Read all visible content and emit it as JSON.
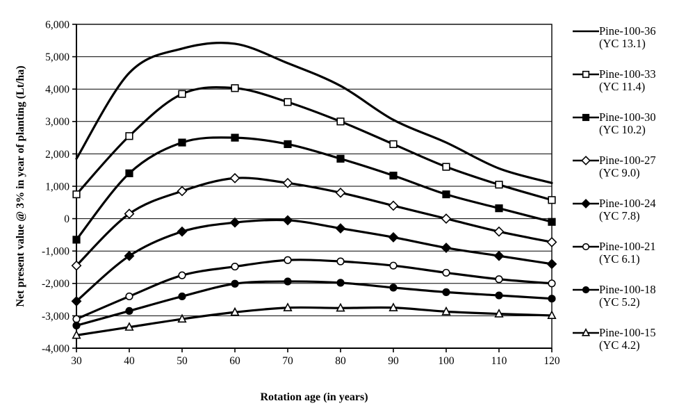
{
  "figure": {
    "background": "#ffffff",
    "line_color": "#000000"
  },
  "chart_data": {
    "type": "line",
    "title": "",
    "xlabel": "Rotation age (in years)",
    "ylabel": "Net present value @ 3% in year of planting (Lt/ha)",
    "x": [
      30,
      40,
      50,
      60,
      70,
      80,
      90,
      100,
      110,
      120
    ],
    "xtick_labels": [
      "30",
      "40",
      "50",
      "60",
      "70",
      "80",
      "90",
      "100",
      "110",
      "120"
    ],
    "xlim": [
      30,
      120
    ],
    "ylim": [
      -4000,
      6000
    ],
    "ytick_values": [
      6000,
      5000,
      4000,
      3000,
      2000,
      1000,
      0,
      -1000,
      -2000,
      -3000,
      -4000
    ],
    "ytick_labels": [
      "6,000",
      "5,000",
      "4,000",
      "3,000",
      "2,000",
      "1,000",
      "0",
      "-1,000",
      "-2,000",
      "-3,000",
      "-4,000"
    ],
    "grid": "horizontal",
    "legend_position": "right",
    "series": [
      {
        "name": "Pine-100-36",
        "yc": "(YC 13.1)",
        "marker": "none",
        "values": [
          1850,
          4500,
          5250,
          5400,
          4800,
          4100,
          3050,
          2350,
          1550,
          1100
        ]
      },
      {
        "name": "Pine-100-33",
        "yc": "(YC 11.4)",
        "marker": "square-open",
        "values": [
          750,
          2550,
          3850,
          4030,
          3600,
          3000,
          2300,
          1600,
          1050,
          575
        ]
      },
      {
        "name": "Pine-100-30",
        "yc": "(YC 10.2)",
        "marker": "square-filled",
        "values": [
          -650,
          1400,
          2350,
          2500,
          2300,
          1850,
          1330,
          750,
          320,
          -100
        ]
      },
      {
        "name": "Pine-100-27",
        "yc": "(YC 9.0)",
        "marker": "diamond-open",
        "values": [
          -1450,
          150,
          850,
          1250,
          1100,
          800,
          400,
          0,
          -400,
          -725
        ]
      },
      {
        "name": "Pine-100-24",
        "yc": "(YC 7.8)",
        "marker": "diamond-filled",
        "values": [
          -2550,
          -1150,
          -400,
          -120,
          -50,
          -300,
          -575,
          -900,
          -1150,
          -1400
        ]
      },
      {
        "name": "Pine-100-21",
        "yc": "(YC 6.1)",
        "marker": "circle-open",
        "values": [
          -3100,
          -2400,
          -1750,
          -1480,
          -1280,
          -1320,
          -1450,
          -1670,
          -1870,
          -2000
        ]
      },
      {
        "name": "Pine-100-18",
        "yc": "(YC 5.2)",
        "marker": "circle-filled",
        "values": [
          -3300,
          -2850,
          -2400,
          -2010,
          -1940,
          -1980,
          -2130,
          -2270,
          -2370,
          -2470
        ]
      },
      {
        "name": "Pine-100-15",
        "yc": "(YC 4.2)",
        "marker": "triangle-open",
        "values": [
          -3600,
          -3350,
          -3100,
          -2890,
          -2750,
          -2760,
          -2750,
          -2870,
          -2940,
          -2990
        ]
      }
    ]
  }
}
